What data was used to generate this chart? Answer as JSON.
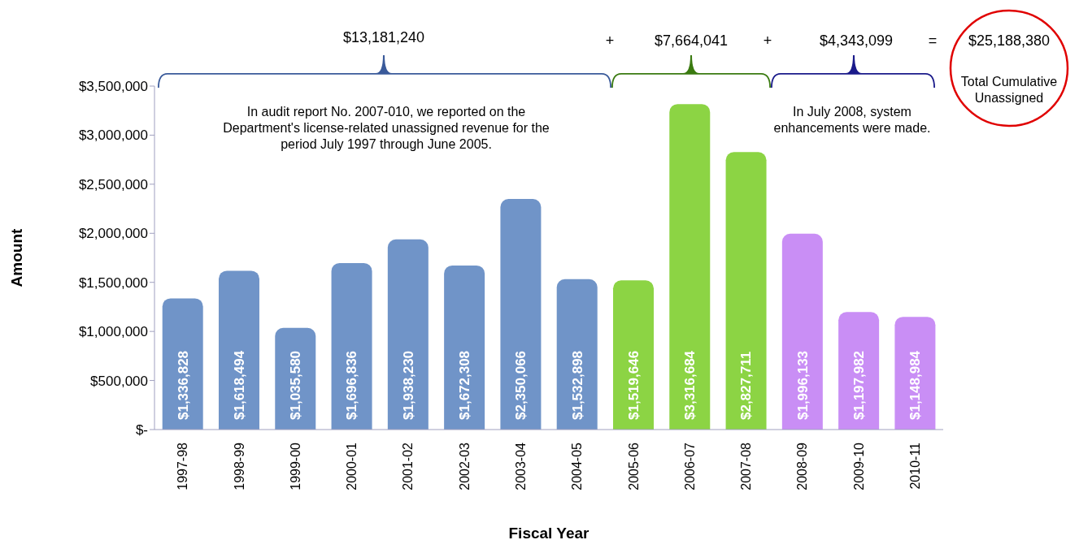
{
  "chart_data": {
    "type": "bar",
    "xlabel": "Fiscal Year",
    "ylabel": "Amount",
    "categories": [
      "1997-98",
      "1998-99",
      "1999-00",
      "2000-01",
      "2001-02",
      "2002-03",
      "2003-04",
      "2004-05",
      "2005-06",
      "2006-07",
      "2007-08",
      "2008-09",
      "2009-10",
      "2010-11"
    ],
    "values": [
      1336828,
      1618494,
      1035580,
      1696836,
      1938230,
      1672308,
      2350066,
      1532898,
      1519646,
      3316684,
      2827711,
      1996133,
      1197982,
      1148984
    ],
    "colors": [
      "#7094c8",
      "#7094c8",
      "#7094c8",
      "#7094c8",
      "#7094c8",
      "#7094c8",
      "#7094c8",
      "#7094c8",
      "#8cd444",
      "#8cd444",
      "#8cd444",
      "#c98ef5",
      "#c98ef5",
      "#c98ef5"
    ],
    "value_labels": [
      "$1,336,828",
      "$1,618,494",
      "$1,035,580",
      "$1,696,836",
      "$1,938,230",
      "$1,672,308",
      "$2,350,066",
      "$1,532,898",
      "$1,519,646",
      "$3,316,684",
      "$2,827,711",
      "$1,996,133",
      "$1,197,982",
      "$1,148,984"
    ],
    "ylim": [
      0,
      3500000
    ],
    "yticks": [
      {
        "value": 0,
        "label": "$-"
      },
      {
        "value": 500000,
        "label": "$500,000"
      },
      {
        "value": 1000000,
        "label": "$1,000,000"
      },
      {
        "value": 1500000,
        "label": "$1,500,000"
      },
      {
        "value": 2000000,
        "label": "$2,000,000"
      },
      {
        "value": 2500000,
        "label": "$2,500,000"
      },
      {
        "value": 3000000,
        "label": "$3,000,000"
      },
      {
        "value": 3500000,
        "label": "$3,500,000"
      }
    ],
    "annotations": [
      "$13,181,240",
      "+",
      "$7,664,041",
      "+",
      "$4,343,099",
      "=",
      "$25,188,380",
      "Total Cumulative Unassigned",
      "In audit report No. 2007-010, we reported on the Department's license-related unassigned revenue for the period July 1997 through June 2005.",
      "In July 2008, system enhancements were made."
    ]
  }
}
